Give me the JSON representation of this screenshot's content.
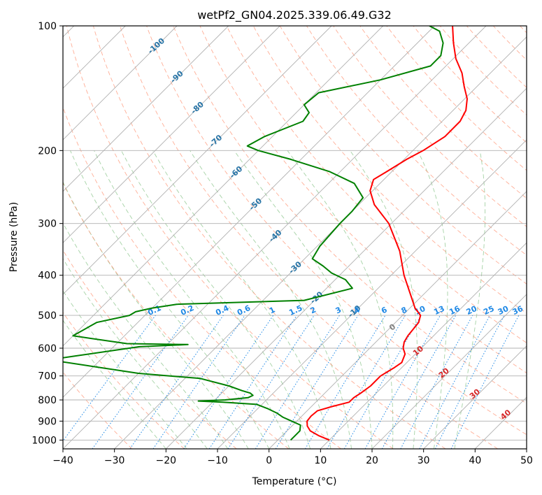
{
  "chart_data": {
    "type": "line",
    "subtype": "skew-t log-p diagram",
    "title": "wetPf2_GN04.2025.339.06.49.G32",
    "xlabel": "Temperature (°C)",
    "ylabel": "Pressure (hPa)",
    "xlim": [
      -40,
      50
    ],
    "ylim": [
      1050,
      100
    ],
    "y_scale": "log",
    "x_ticks": [
      -40,
      -30,
      -20,
      -10,
      0,
      10,
      20,
      30,
      40,
      50
    ],
    "y_ticks": [
      100,
      200,
      300,
      400,
      500,
      600,
      700,
      800,
      900,
      1000
    ],
    "grid": "horizontal lines at pressure ticks",
    "colors": {
      "temperature": "#ff0000",
      "dewpoint": "#008000",
      "isotherm": "#b0b0b0",
      "dry_adiabat": "#ff8c69",
      "moist_adiabat": "#7fbf7f",
      "mixing_ratio": "#1e88e5",
      "isotherm_label": "#2874a6",
      "theta_label_red": "#d62728",
      "theta_label_grey": "#808080"
    },
    "series": [
      {
        "name": "",
        "role": "temperature",
        "color": "#ff0000",
        "points": [
          [
            1000,
            10.0
          ],
          [
            975,
            7.0
          ],
          [
            950,
            4.5
          ],
          [
            925,
            3.0
          ],
          [
            900,
            2.0
          ],
          [
            875,
            1.8
          ],
          [
            850,
            2.0
          ],
          [
            830,
            4.0
          ],
          [
            810,
            6.5
          ],
          [
            790,
            6.5
          ],
          [
            770,
            7.0
          ],
          [
            740,
            7.5
          ],
          [
            700,
            7.5
          ],
          [
            670,
            8.5
          ],
          [
            650,
            9.0
          ],
          [
            620,
            8.0
          ],
          [
            600,
            6.5
          ],
          [
            580,
            5.5
          ],
          [
            560,
            5.0
          ],
          [
            520,
            4.5
          ],
          [
            500,
            3.5
          ],
          [
            480,
            1.0
          ],
          [
            450,
            -2.0
          ],
          [
            400,
            -7.5
          ],
          [
            350,
            -13.0
          ],
          [
            300,
            -20.5
          ],
          [
            270,
            -27.0
          ],
          [
            250,
            -30.5
          ],
          [
            235,
            -32.0
          ],
          [
            225,
            -31.0
          ],
          [
            210,
            -29.5
          ],
          [
            200,
            -28.0
          ],
          [
            185,
            -26.5
          ],
          [
            170,
            -26.5
          ],
          [
            160,
            -27.5
          ],
          [
            150,
            -29.5
          ],
          [
            140,
            -32.5
          ],
          [
            130,
            -35.5
          ],
          [
            120,
            -39.5
          ],
          [
            110,
            -43.0
          ],
          [
            100,
            -46.5
          ]
        ]
      },
      {
        "name": "",
        "role": "dewpoint",
        "color": "#008000",
        "points": [
          [
            1000,
            2.5
          ],
          [
            970,
            2.5
          ],
          [
            950,
            2.5
          ],
          [
            920,
            1.5
          ],
          [
            900,
            -1.0
          ],
          [
            880,
            -3.5
          ],
          [
            860,
            -5.5
          ],
          [
            840,
            -8.0
          ],
          [
            820,
            -11.0
          ],
          [
            810,
            -18.0
          ],
          [
            805,
            -23.0
          ],
          [
            800,
            -18.0
          ],
          [
            790,
            -14.0
          ],
          [
            780,
            -13.5
          ],
          [
            770,
            -14.5
          ],
          [
            760,
            -16.5
          ],
          [
            740,
            -20.0
          ],
          [
            710,
            -27.0
          ],
          [
            690,
            -40.0
          ],
          [
            640,
            -60.0
          ],
          [
            595,
            -45.0
          ],
          [
            588,
            -36.0
          ],
          [
            585,
            -48.0
          ],
          [
            560,
            -60.0
          ],
          [
            520,
            -58.0
          ],
          [
            500,
            -53.0
          ],
          [
            490,
            -52.5
          ],
          [
            480,
            -50.0
          ],
          [
            470,
            -46.0
          ],
          [
            460,
            -22.0
          ],
          [
            430,
            -15.0
          ],
          [
            410,
            -18.0
          ],
          [
            395,
            -22.0
          ],
          [
            380,
            -25.0
          ],
          [
            365,
            -28.5
          ],
          [
            340,
            -29.5
          ],
          [
            300,
            -30.0
          ],
          [
            280,
            -30.0
          ],
          [
            260,
            -30.5
          ],
          [
            240,
            -35.0
          ],
          [
            225,
            -42.0
          ],
          [
            210,
            -52.0
          ],
          [
            200,
            -60.0
          ],
          [
            195,
            -63.0
          ],
          [
            185,
            -61.5
          ],
          [
            170,
            -57.0
          ],
          [
            162,
            -57.5
          ],
          [
            155,
            -60.0
          ],
          [
            145,
            -59.5
          ],
          [
            135,
            -50.0
          ],
          [
            125,
            -43.0
          ],
          [
            118,
            -43.0
          ],
          [
            110,
            -45.0
          ],
          [
            103,
            -48.0
          ],
          [
            100,
            -51.0
          ]
        ]
      }
    ],
    "isotherm_labels": [
      "-100",
      "-90",
      "-80",
      "-70",
      "-60",
      "-50",
      "-40",
      "-30",
      "-20",
      "-10"
    ],
    "mixing_ratio_labels": [
      "0.1",
      "0.2",
      "0.4",
      "0.6",
      "1",
      "1.5",
      "2",
      "3",
      "4",
      "6",
      "8",
      "10",
      "13",
      "16",
      "20",
      "25",
      "30",
      "36"
    ],
    "adiabat_labels": [
      "0",
      "10",
      "20",
      "30",
      "40"
    ]
  }
}
